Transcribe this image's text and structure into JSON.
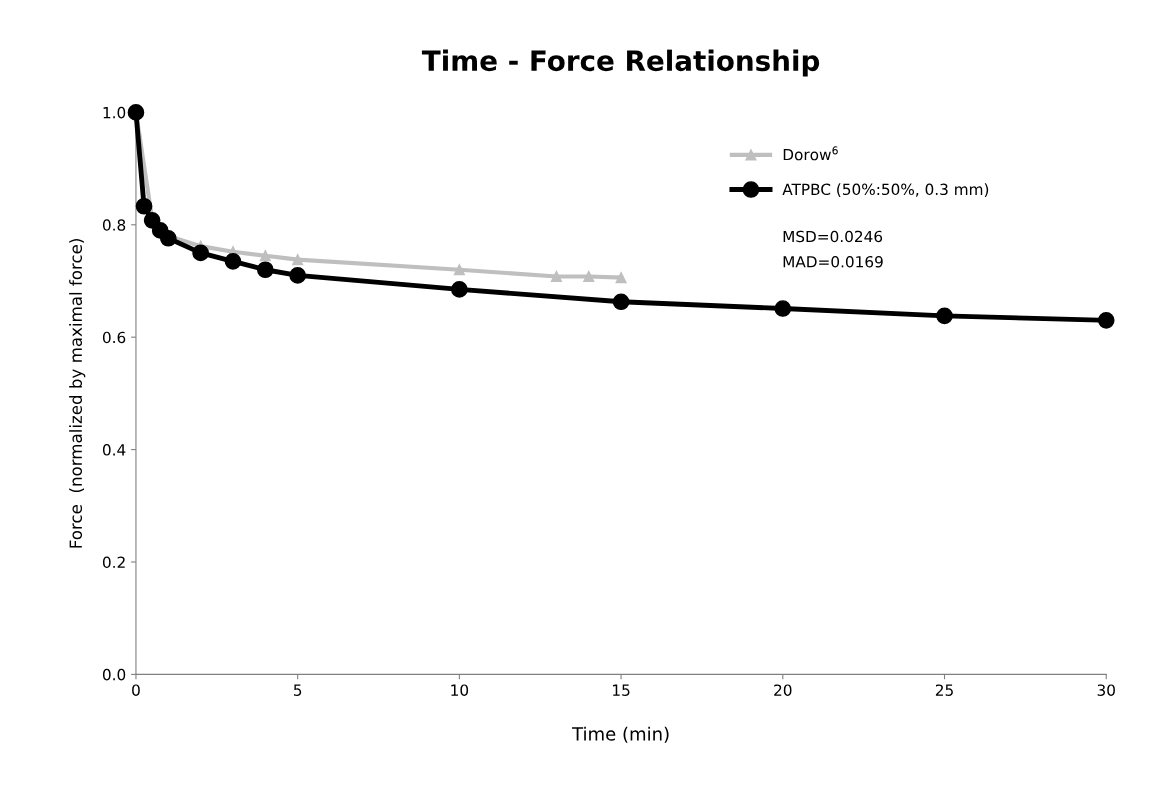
{
  "chart_data": {
    "type": "line",
    "title": "Time - Force Relationship",
    "xlabel": "Time (min)",
    "ylabel": "Force  (normalized by maximal force)",
    "series": [
      {
        "name": "Dorow$^{6}$",
        "color": "#bfbfbf",
        "marker": "triangle",
        "x": [
          0,
          0.5,
          1,
          2,
          3,
          4,
          5,
          10,
          13,
          14,
          15
        ],
        "values": [
          1.0,
          0.81,
          0.78,
          0.762,
          0.752,
          0.745,
          0.738,
          0.72,
          0.708,
          0.708,
          0.706
        ]
      },
      {
        "name": "ATPBC (50%:50%, 0.3 mm)",
        "color": "#000000",
        "marker": "circle",
        "x": [
          0,
          0.25,
          0.5,
          0.75,
          1,
          2,
          3,
          4,
          5,
          10,
          15,
          20,
          25,
          30
        ],
        "values": [
          1.0,
          0.833,
          0.808,
          0.79,
          0.776,
          0.75,
          0.735,
          0.72,
          0.71,
          0.685,
          0.663,
          0.651,
          0.638,
          0.63
        ]
      }
    ],
    "annotations": [
      "MSD=0.0246",
      "MAD=0.0169"
    ],
    "xlim": [
      0,
      30
    ],
    "xticks": [
      0,
      5,
      10,
      15,
      20,
      25,
      30
    ],
    "ylim": [
      0,
      1.0
    ],
    "yticks": [
      {
        "value": 0,
        "label": "0.0"
      },
      {
        "value": 0.2,
        "label": "0.2"
      },
      {
        "value": 0.4,
        "label": "0.4"
      },
      {
        "value": 0.6,
        "label": "0.6"
      },
      {
        "value": 0.8,
        "label": "0.8"
      },
      {
        "value": 1.0,
        "label": "1.0"
      }
    ],
    "grid": false,
    "legend": "top right",
    "line_style": "solid"
  }
}
